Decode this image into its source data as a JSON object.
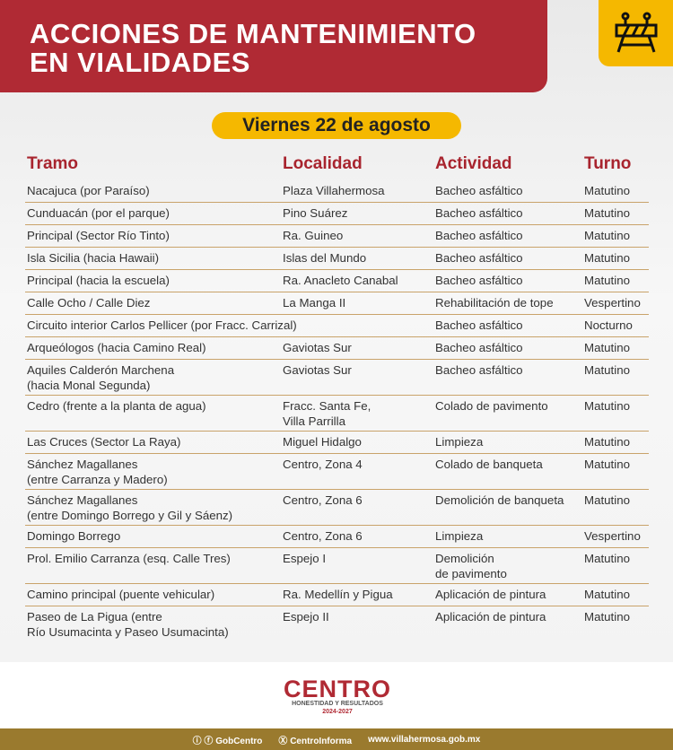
{
  "header": {
    "title_line1": "ACCIONES DE MANTENIMIENTO",
    "title_line2": "EN VIALIDADES",
    "icon": "road-barrier-icon",
    "date": "Viernes 22 de agosto"
  },
  "colors": {
    "red": "#b02a34",
    "yellow": "#f5b800",
    "gold": "#9a7a2e"
  },
  "table": {
    "headers": [
      "Tramo",
      "Localidad",
      "Actividad",
      "Turno"
    ],
    "rows": [
      [
        "Nacajuca (por Paraíso)",
        "Plaza Villahermosa",
        "Bacheo asfáltico",
        "Matutino"
      ],
      [
        "Cunduacán (por el parque)",
        "Pino Suárez",
        "Bacheo asfáltico",
        "Matutino"
      ],
      [
        "Principal (Sector Río Tinto)",
        "Ra. Guineo",
        "Bacheo asfáltico",
        "Matutino"
      ],
      [
        "Isla Sicilia (hacia Hawaii)",
        "Islas del Mundo",
        "Bacheo asfáltico",
        "Matutino"
      ],
      [
        "Principal (hacia la escuela)",
        "Ra. Anacleto Canabal",
        "Bacheo asfáltico",
        "Matutino"
      ],
      [
        "Calle Ocho / Calle Diez",
        "La Manga II",
        "Rehabilitación de tope",
        "Vespertino"
      ],
      [
        "Circuito interior Carlos Pellicer (por Fracc. Carrizal)",
        "",
        "Bacheo asfáltico",
        "Nocturno"
      ],
      [
        "Arqueólogos (hacia Camino Real)",
        "Gaviotas Sur",
        "Bacheo asfáltico",
        "Matutino"
      ],
      [
        "Aquiles Calderón Marchena\n(hacia Monal Segunda)",
        "Gaviotas Sur",
        "Bacheo asfáltico",
        "Matutino"
      ],
      [
        "Cedro (frente a la planta de agua)",
        "Fracc. Santa Fe,\nVilla Parrilla",
        "Colado de pavimento",
        "Matutino"
      ],
      [
        "Las Cruces (Sector La Raya)",
        "Miguel Hidalgo",
        "Limpieza",
        "Matutino"
      ],
      [
        "Sánchez Magallanes\n(entre Carranza y Madero)",
        "Centro, Zona 4",
        "Colado de banqueta",
        "Matutino"
      ],
      [
        "Sánchez Magallanes\n(entre Domingo Borrego y Gil y Sáenz)",
        "Centro, Zona 6",
        "Demolición de banqueta",
        "Matutino"
      ],
      [
        "Domingo Borrego",
        "Centro, Zona 6",
        "Limpieza",
        "Vespertino"
      ],
      [
        "Prol. Emilio Carranza (esq. Calle Tres)",
        "Espejo I",
        "Demolición\nde pavimento",
        "Matutino"
      ],
      [
        "Camino principal (puente vehicular)",
        "Ra. Medellín y Pigua",
        "Aplicación de pintura",
        "Matutino"
      ],
      [
        "Paseo de La Pigua (entre\nRío Usumacinta y Paseo Usumacinta)",
        "Espejo II",
        "Aplicación de pintura",
        "Matutino"
      ]
    ]
  },
  "footer": {
    "logo": "CENTRO",
    "slogan": "HONESTIDAD Y RESULTADOS",
    "years": "2024-2027",
    "social1": "GobCentro",
    "social2": "CentroInforma",
    "website": "www.villahermosa.gob.mx"
  }
}
